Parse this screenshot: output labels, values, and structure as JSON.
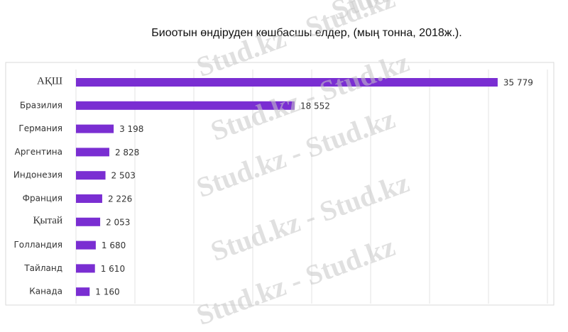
{
  "chart_data": {
    "type": "barh",
    "title": "Биоотын өндіруден көшбасшы елдер, (мың тонна, 2018ж.).",
    "watermark": "Stud.kz - Stud.kz",
    "categories": [
      "АҚШ",
      "Бразилия",
      "Германия",
      "Аргентина",
      "Индонезия",
      "Франция",
      "Қытай",
      "Голландия",
      "Тайланд",
      "Канада"
    ],
    "values": [
      35779,
      18552,
      3198,
      2828,
      2503,
      2226,
      2053,
      1680,
      1610,
      1160
    ],
    "value_labels": [
      "35 779",
      "18 552",
      "3 198",
      "2 828",
      "2 503",
      "2 226",
      "2 053",
      "1 680",
      "1 610",
      "1 160"
    ],
    "color": "#7a2ed2",
    "xlim": [
      0,
      40000
    ],
    "xticks": [
      0,
      5000,
      10000,
      15000,
      20000,
      25000,
      30000,
      35000,
      40000
    ],
    "grid": true
  }
}
